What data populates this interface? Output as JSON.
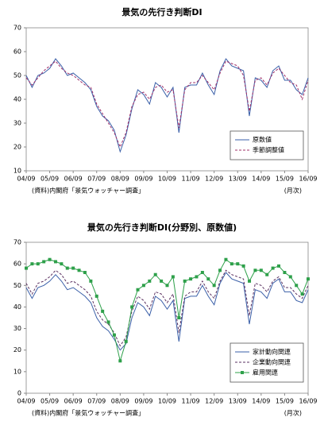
{
  "chart_data": [
    {
      "type": "line",
      "title": "景気の先行き判断DI",
      "categories": [
        "04/09",
        null,
        null,
        null,
        "05/09",
        null,
        null,
        null,
        "06/09",
        null,
        null,
        null,
        "07/09",
        null,
        null,
        null,
        "08/09",
        null,
        null,
        null,
        "09/09",
        null,
        null,
        null,
        "10/09",
        null,
        null,
        null,
        "11/09",
        null,
        null,
        null,
        "12/09",
        null,
        null,
        null,
        "13/09",
        null,
        null,
        null,
        "14/09",
        null,
        null,
        null,
        "15/09",
        null,
        null,
        null,
        "16/09"
      ],
      "series": [
        {
          "name": "原数値",
          "color": "#3a5fa8",
          "dash": false,
          "values": [
            50,
            45,
            50,
            51,
            53,
            57,
            54,
            50,
            51,
            49,
            47,
            44,
            37,
            33,
            31,
            27,
            18,
            25,
            36,
            44,
            42,
            38,
            47,
            45,
            41,
            45,
            26,
            45,
            46,
            46,
            51,
            46,
            42,
            52,
            57,
            54,
            53,
            52,
            33,
            49,
            48,
            45,
            52,
            54,
            48,
            48,
            44,
            42,
            49
          ]
        },
        {
          "name": "季節調整値",
          "color": "#a0306a",
          "dash": true,
          "values": [
            49,
            46,
            49,
            52,
            54,
            56,
            53,
            51,
            50,
            48,
            46,
            45,
            38,
            34,
            30,
            26,
            20,
            26,
            37,
            42,
            43,
            40,
            45,
            46,
            43,
            44,
            28,
            44,
            47,
            47,
            50,
            47,
            44,
            51,
            56,
            55,
            54,
            50,
            35,
            48,
            49,
            46,
            51,
            53,
            50,
            47,
            46,
            40,
            48
          ]
        }
      ],
      "ylim": [
        10,
        70
      ],
      "yticks": [
        10,
        20,
        30,
        40,
        50,
        60,
        70
      ],
      "legend": "lower right",
      "source": "(資料)内閣府「景気ウォッチャー調査」",
      "unit_note": "(月次)"
    },
    {
      "type": "line",
      "title": "景気の先行き判断DI(分野別、原数値)",
      "categories": [
        "04/09",
        null,
        null,
        null,
        "05/09",
        null,
        null,
        null,
        "06/09",
        null,
        null,
        null,
        "07/09",
        null,
        null,
        null,
        "08/09",
        null,
        null,
        null,
        "09/09",
        null,
        null,
        null,
        "10/09",
        null,
        null,
        null,
        "11/09",
        null,
        null,
        null,
        "12/09",
        null,
        null,
        null,
        "13/09",
        null,
        null,
        null,
        "14/09",
        null,
        null,
        null,
        "15/09",
        null,
        null,
        null,
        "16/09"
      ],
      "series": [
        {
          "name": "家計動向関連",
          "color": "#3a5fa8",
          "dash": false,
          "marker": false,
          "values": [
            49,
            44,
            49,
            50,
            52,
            55,
            52,
            48,
            49,
            47,
            45,
            42,
            35,
            31,
            29,
            25,
            20,
            23,
            35,
            42,
            40,
            36,
            45,
            43,
            39,
            43,
            24,
            44,
            45,
            45,
            50,
            45,
            41,
            51,
            56,
            53,
            52,
            51,
            32,
            48,
            47,
            44,
            51,
            53,
            47,
            47,
            43,
            42,
            48
          ]
        },
        {
          "name": "企業動向関連",
          "color": "#5a3060",
          "dash": true,
          "marker": false,
          "values": [
            51,
            46,
            51,
            52,
            54,
            57,
            55,
            51,
            52,
            50,
            48,
            45,
            38,
            34,
            32,
            28,
            22,
            26,
            38,
            45,
            43,
            39,
            47,
            46,
            42,
            46,
            28,
            45,
            47,
            47,
            52,
            47,
            44,
            52,
            57,
            55,
            54,
            53,
            36,
            51,
            50,
            47,
            52,
            54,
            49,
            49,
            46,
            44,
            50
          ]
        },
        {
          "name": "雇用関連",
          "color": "#2ea04a",
          "dash": false,
          "marker": true,
          "values": [
            58,
            60,
            60,
            61,
            62,
            61,
            60,
            58,
            58,
            57,
            56,
            52,
            45,
            38,
            33,
            27,
            15,
            24,
            40,
            48,
            50,
            52,
            55,
            52,
            50,
            54,
            35,
            52,
            53,
            54,
            56,
            53,
            50,
            57,
            62,
            60,
            60,
            59,
            52,
            57,
            57,
            55,
            58,
            59,
            56,
            54,
            50,
            46,
            53
          ]
        }
      ],
      "ylim": [
        0,
        70
      ],
      "yticks": [
        0,
        10,
        20,
        30,
        40,
        50,
        60,
        70
      ],
      "legend": "lower right",
      "source": "(資料)内閣府「景気ウォッチャー調査」",
      "unit_note": "(月次)"
    }
  ]
}
